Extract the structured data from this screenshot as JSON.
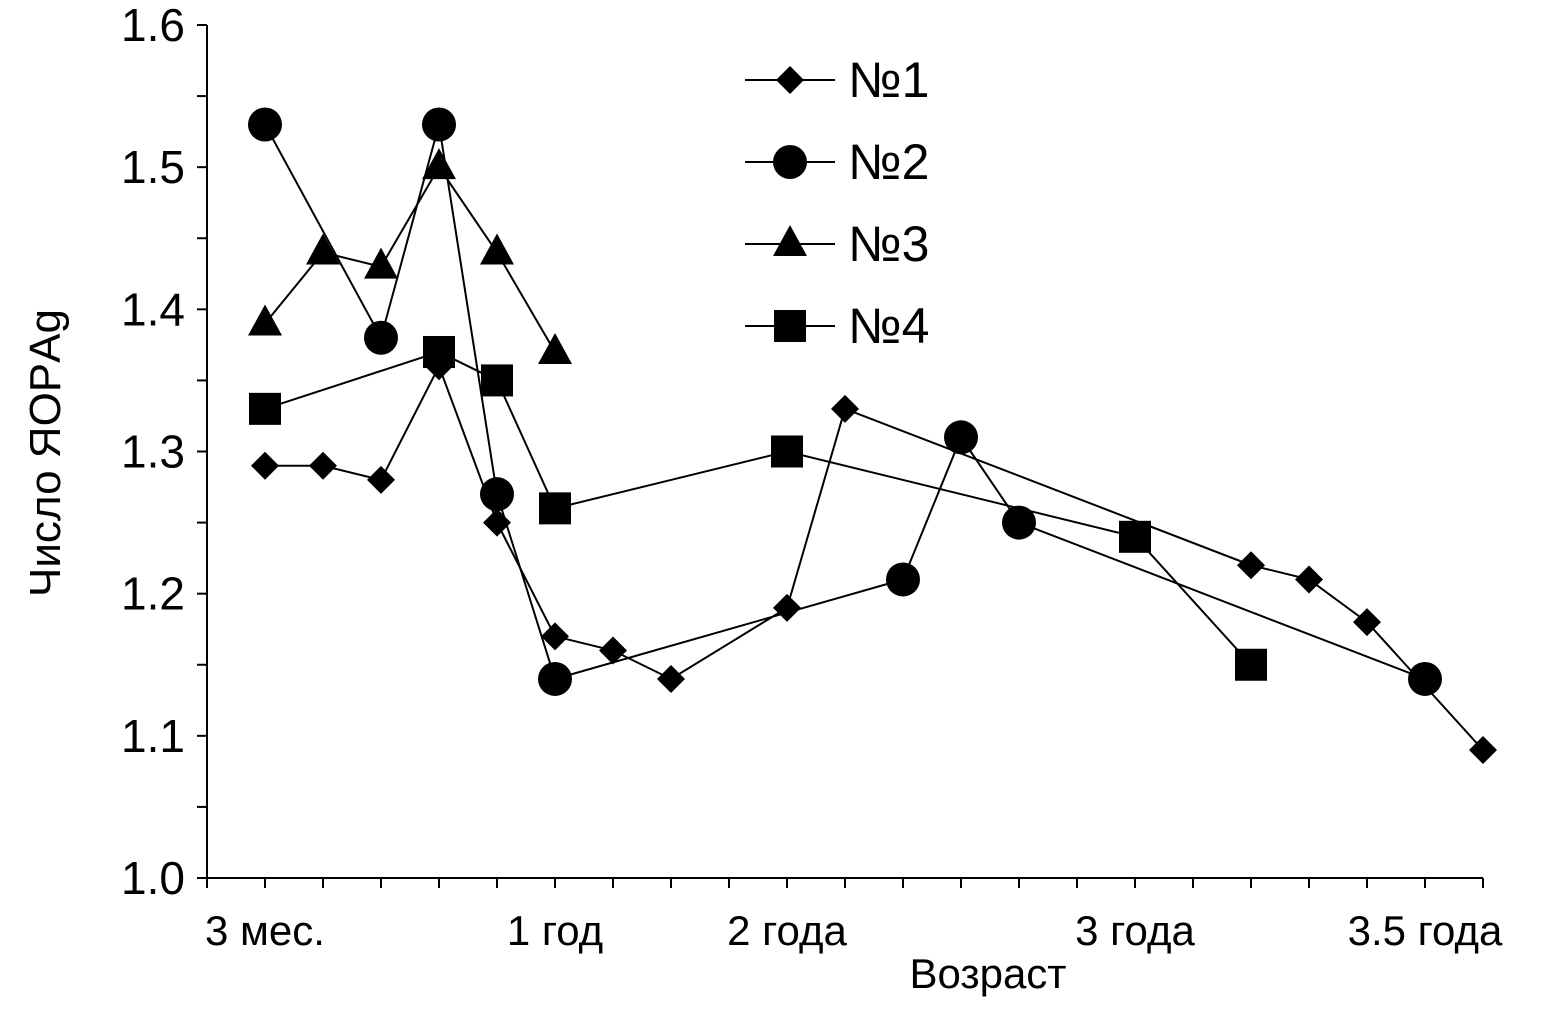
{
  "chart_data": {
    "type": "line",
    "title": "",
    "xlabel": "Возраст",
    "ylabel": "Число ЯОРAg",
    "ylim": [
      1.0,
      1.6
    ],
    "yticks": [
      "1.0",
      "1.1",
      "1.2",
      "1.3",
      "1.4",
      "1.5",
      "1.6"
    ],
    "x_range": [
      0,
      22
    ],
    "x_tick_labels": [
      {
        "x": 1,
        "label": "3 мес."
      },
      {
        "x": 6,
        "label": "1 год"
      },
      {
        "x": 10,
        "label": "2 года"
      },
      {
        "x": 16,
        "label": "3 года"
      },
      {
        "x": 21,
        "label": "3.5 года"
      }
    ],
    "legend_position": "top-center",
    "series": [
      {
        "name": "№1",
        "marker": "diamond",
        "x": [
          1,
          2,
          3,
          4,
          5,
          6,
          7,
          8,
          10,
          11,
          18,
          19,
          20,
          22
        ],
        "y": [
          1.29,
          1.29,
          1.28,
          1.36,
          1.25,
          1.17,
          1.16,
          1.14,
          1.19,
          1.33,
          1.22,
          1.21,
          1.18,
          1.09
        ]
      },
      {
        "name": "№2",
        "marker": "circle",
        "x": [
          1,
          3,
          4,
          5,
          6,
          12,
          13,
          14,
          21
        ],
        "y": [
          1.53,
          1.38,
          1.53,
          1.27,
          1.14,
          1.21,
          1.31,
          1.25,
          1.14
        ]
      },
      {
        "name": "№3",
        "marker": "triangle",
        "x": [
          1,
          2,
          3,
          4,
          5,
          6
        ],
        "y": [
          1.39,
          1.44,
          1.43,
          1.5,
          1.44,
          1.37
        ]
      },
      {
        "name": "№4",
        "marker": "square",
        "x": [
          1,
          4,
          5,
          6,
          10,
          16,
          18
        ],
        "y": [
          1.33,
          1.37,
          1.35,
          1.26,
          1.3,
          1.24,
          1.15
        ]
      }
    ]
  }
}
